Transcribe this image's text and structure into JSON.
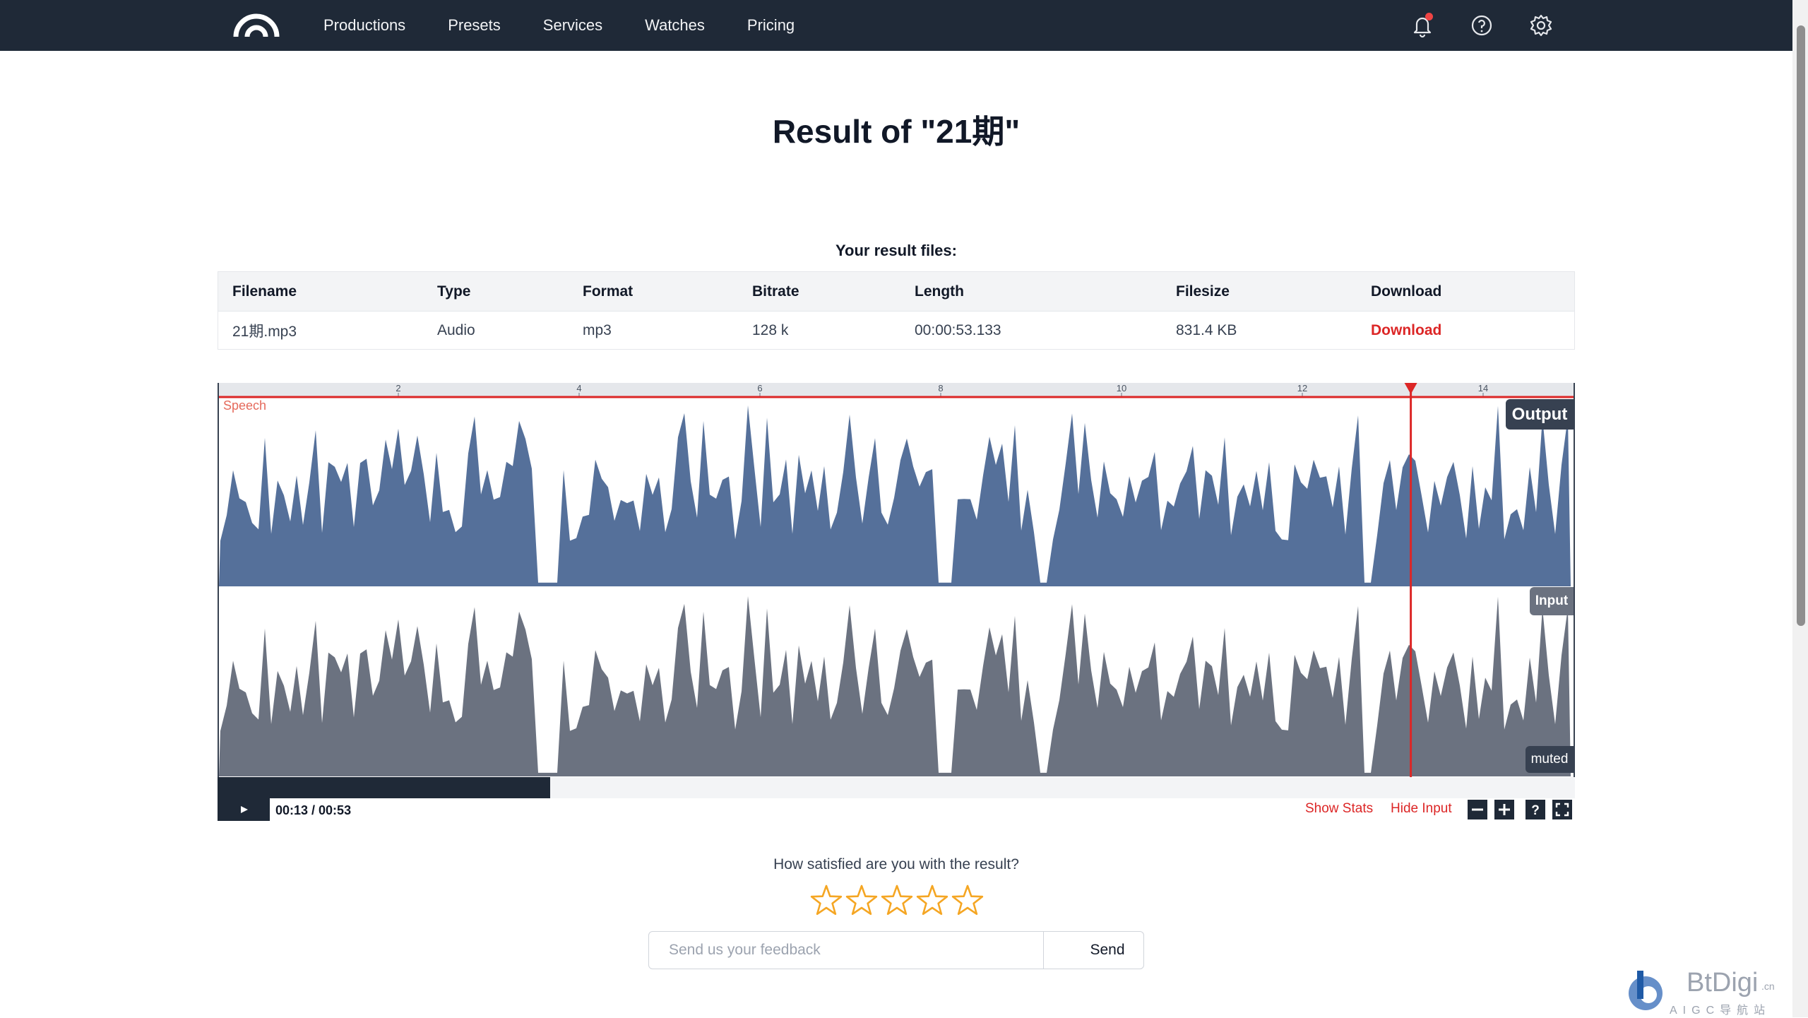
{
  "nav": {
    "items": [
      "Productions",
      "Presets",
      "Services",
      "Watches",
      "Pricing"
    ]
  },
  "page": {
    "title": "Result of \"21期\"",
    "files_label": "Your result files:"
  },
  "table": {
    "headers": [
      "Filename",
      "Type",
      "Format",
      "Bitrate",
      "Length",
      "Filesize",
      "Download"
    ],
    "row": {
      "filename": "21期.mp3",
      "type": "Audio",
      "format": "mp3",
      "bitrate": "128 k",
      "length": "00:00:53.133",
      "filesize": "831.4 KB",
      "download": "Download"
    }
  },
  "player": {
    "timeline_ticks": [
      "2",
      "4",
      "6",
      "8",
      "10",
      "12",
      "14"
    ],
    "speech_label": "Speech",
    "output_label": "Output",
    "input_label": "Input",
    "muted_label": "muted",
    "time": "00:13 / 00:53",
    "progress_fraction": 0.245,
    "playhead_seconds": 13.2,
    "show_stats": "Show Stats",
    "hide_input": "Hide Input",
    "help_glyph": "?",
    "output_color": "#55709a",
    "input_color": "#6b7280",
    "accent_color": "#dc2626"
  },
  "feedback": {
    "question": "How satisfied are you with the result?",
    "rating": 0,
    "max_rating": 5,
    "placeholder": "Send us your feedback",
    "send_label": "Send"
  },
  "watermark": {
    "brand": "BtDigi",
    "suffix": ".cn",
    "subtitle": "AIGC导航站"
  }
}
